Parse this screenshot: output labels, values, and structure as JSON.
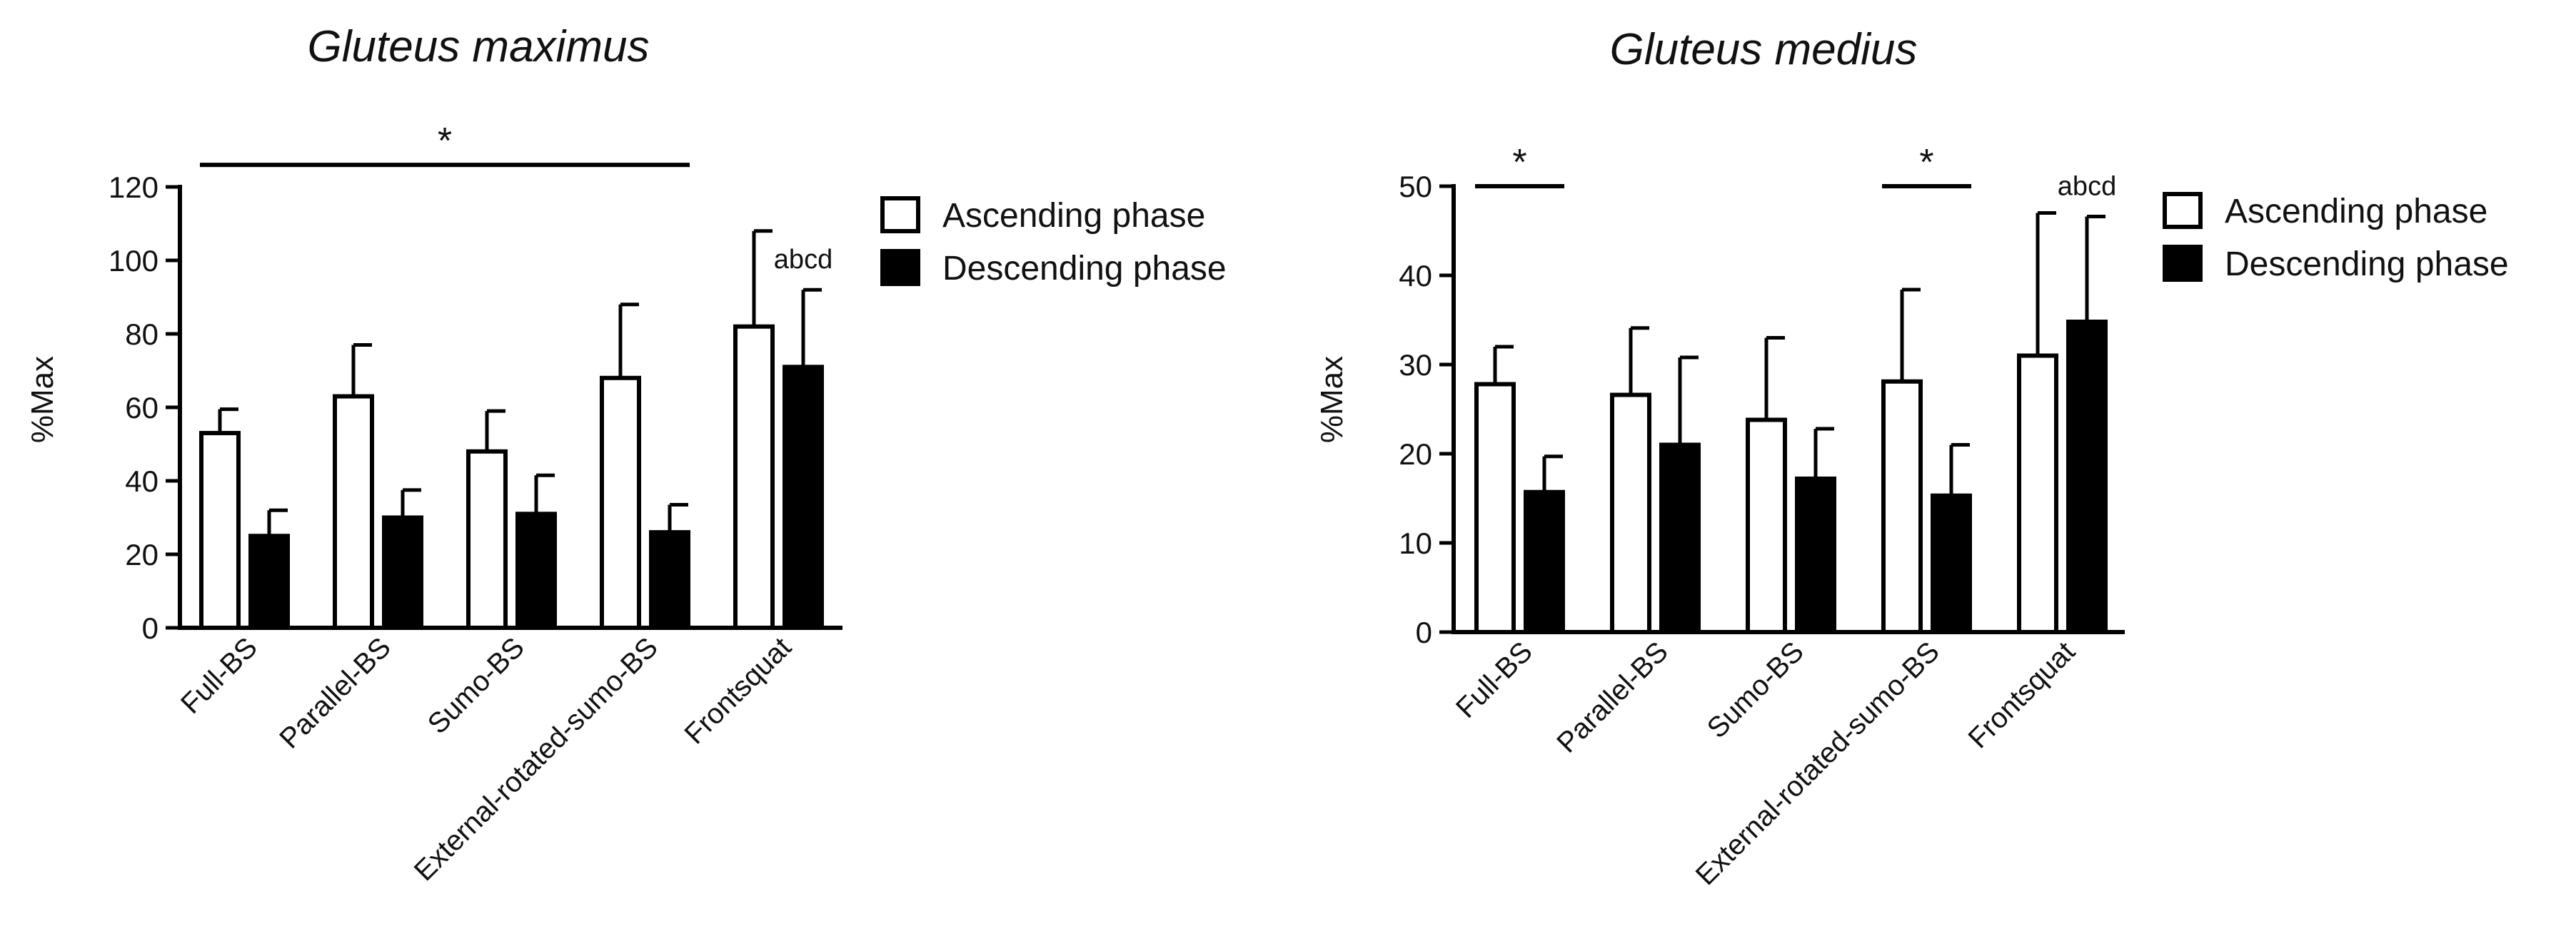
{
  "chart_data": [
    {
      "type": "bar",
      "title": "Gluteus maximus",
      "xlabel": "",
      "ylabel": "%Max",
      "ylim": [
        0,
        120
      ],
      "yticks": [
        0,
        20,
        40,
        60,
        80,
        100,
        120
      ],
      "categories": [
        "Full-BS",
        "Parallel-BS",
        "Sumo-BS",
        "External-rotated-sumo-BS",
        "Frontsquat"
      ],
      "series": [
        {
          "name": "Ascending phase",
          "fill": "#ffffff",
          "stroke": "#000000",
          "values": [
            53,
            63,
            48,
            68,
            82
          ],
          "errors": [
            6.5,
            14,
            11,
            20,
            26
          ]
        },
        {
          "name": "Descending phase",
          "fill": "#000000",
          "stroke": "#000000",
          "values": [
            25,
            30,
            31,
            26,
            71
          ],
          "errors": [
            7,
            7.5,
            10.5,
            7.5,
            21
          ]
        }
      ],
      "legend": [
        "Ascending phase",
        "Descending phase"
      ],
      "legend_position": "right",
      "significance": [
        {
          "label": "*",
          "from": 0,
          "to": 3,
          "y_level": 126
        }
      ],
      "annotations": [
        {
          "text": "abcd",
          "category": 4
        }
      ]
    },
    {
      "type": "bar",
      "title": "Gluteus medius",
      "xlabel": "",
      "ylabel": "%Max",
      "ylim": [
        0,
        50
      ],
      "yticks": [
        0,
        10,
        20,
        30,
        40,
        50
      ],
      "categories": [
        "Full-BS",
        "Parallel-BS",
        "Sumo-BS",
        "External-rotated-sumo-BS",
        "Frontsquat"
      ],
      "series": [
        {
          "name": "Ascending phase",
          "fill": "#ffffff",
          "stroke": "#000000",
          "values": [
            27.8,
            26.6,
            23.8,
            28.1,
            31
          ],
          "errors": [
            4.2,
            7.5,
            9.2,
            10.3,
            16
          ]
        },
        {
          "name": "Descending phase",
          "fill": "#000000",
          "stroke": "#000000",
          "values": [
            15.7,
            21,
            17.2,
            15.3,
            34.8
          ],
          "errors": [
            4,
            9.8,
            5.6,
            5.7,
            11.8
          ]
        }
      ],
      "legend": [
        "Ascending phase",
        "Descending phase"
      ],
      "legend_position": "right",
      "significance": [
        {
          "label": "*",
          "from": 0,
          "to": 0,
          "y_level": 50
        },
        {
          "label": "*",
          "from": 3,
          "to": 3,
          "y_level": 50
        }
      ],
      "annotations": [
        {
          "text": "abcd",
          "category": 4
        }
      ]
    }
  ]
}
